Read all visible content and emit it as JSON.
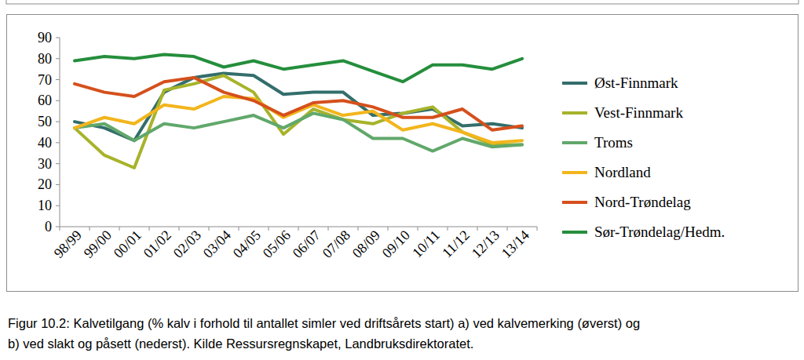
{
  "chart_data": {
    "type": "line",
    "categories": [
      "98/99",
      "99/00",
      "00/01",
      "01/02",
      "02/03",
      "03/04",
      "04/05",
      "05/06",
      "06/07",
      "07/08",
      "08/09",
      "09/10",
      "10/11",
      "11/12",
      "12/13",
      "13/14"
    ],
    "series": [
      {
        "name": "Øst-Finnmark",
        "color": "#336e6b",
        "values": [
          50,
          47,
          41,
          64,
          71,
          73,
          72,
          63,
          64,
          64,
          53,
          54,
          56,
          48,
          49,
          47
        ]
      },
      {
        "name": "Vest-Finnmark",
        "color": "#a7b32a",
        "values": [
          47,
          34,
          28,
          65,
          68,
          72,
          64,
          44,
          56,
          51,
          49,
          54,
          57,
          45,
          39,
          39
        ]
      },
      {
        "name": "Troms",
        "color": "#61a86b",
        "values": [
          47,
          49,
          41,
          49,
          47,
          50,
          53,
          47,
          54,
          51,
          42,
          42,
          36,
          42,
          38,
          39
        ]
      },
      {
        "name": "Nordland",
        "color": "#f2b51c",
        "values": [
          47,
          52,
          49,
          58,
          56,
          62,
          61,
          52,
          58,
          53,
          55,
          46,
          49,
          45,
          40,
          41
        ]
      },
      {
        "name": "Nord-Trøndelag",
        "color": "#d5501c",
        "values": [
          68,
          64,
          62,
          69,
          71,
          64,
          60,
          53,
          59,
          60,
          57,
          52,
          52,
          56,
          46,
          48
        ]
      },
      {
        "name": "Sør-Trøndelag/Hedm.",
        "color": "#258e3c",
        "values": [
          79,
          81,
          80,
          82,
          81,
          76,
          79,
          75,
          77,
          79,
          74,
          69,
          77,
          77,
          75,
          80
        ]
      }
    ],
    "ylim": [
      0,
      90
    ],
    "yticks": [
      0,
      10,
      20,
      30,
      40,
      50,
      60,
      70,
      80,
      90
    ],
    "grid": false,
    "legend": "right",
    "annotations": [
      "Figur 10.2: Kalvetilgang (% kalv i forhold til antallet simler ved driftsårets start) a) ved kalvemerking (øverst) og",
      "b) ved slakt og påsett (nederst). Kilde Ressursregnskapet, Landbruksdirektoratet."
    ]
  }
}
